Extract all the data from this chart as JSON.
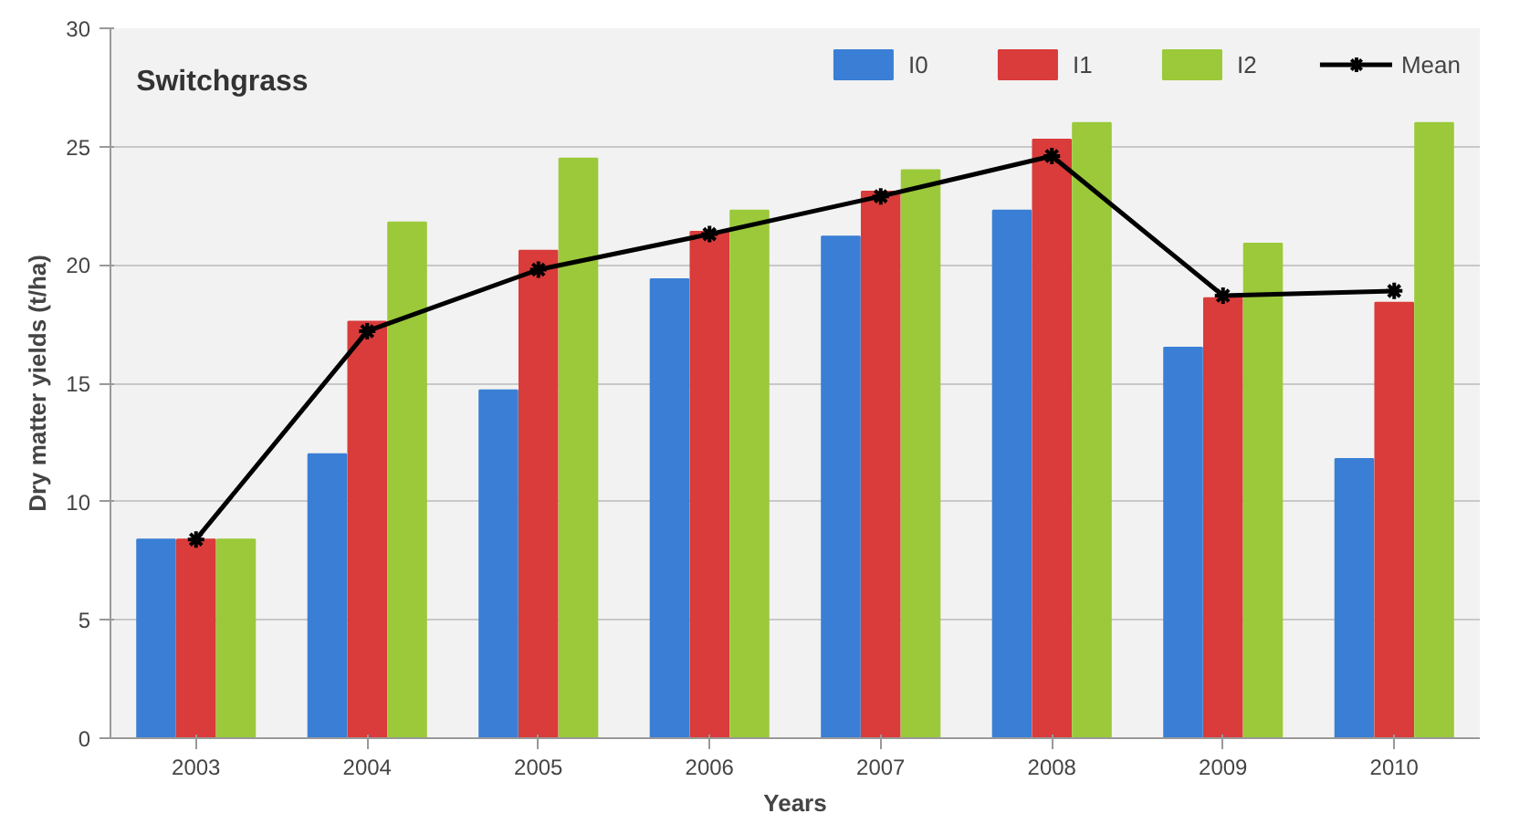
{
  "chart_data": {
    "type": "bar",
    "title": "Switchgrass",
    "xlabel": "Years",
    "ylabel": "Dry matter yields (t/ha)",
    "categories": [
      "2003",
      "2004",
      "2005",
      "2006",
      "2007",
      "2008",
      "2009",
      "2010"
    ],
    "series": [
      {
        "name": "I0",
        "color": "#3a7fd5",
        "values": [
          8.4,
          12.0,
          14.7,
          19.4,
          21.2,
          22.3,
          16.5,
          11.8
        ]
      },
      {
        "name": "I1",
        "color": "#d93c3a",
        "values": [
          8.4,
          17.6,
          20.6,
          21.4,
          23.1,
          25.3,
          18.6,
          18.4
        ]
      },
      {
        "name": "I2",
        "color": "#9bc93a",
        "values": [
          8.4,
          21.8,
          24.5,
          22.3,
          24.0,
          26.0,
          20.9,
          26.0
        ]
      },
      {
        "name": "Mean",
        "type": "line",
        "color": "#000000",
        "marker": "cross",
        "values": [
          8.4,
          17.2,
          19.8,
          21.3,
          22.9,
          24.6,
          18.7,
          18.9
        ]
      }
    ],
    "ylim": [
      0,
      30
    ],
    "yticks": [
      0,
      5,
      10,
      15,
      20,
      25,
      30
    ],
    "grid": "y",
    "legend": "top right"
  }
}
